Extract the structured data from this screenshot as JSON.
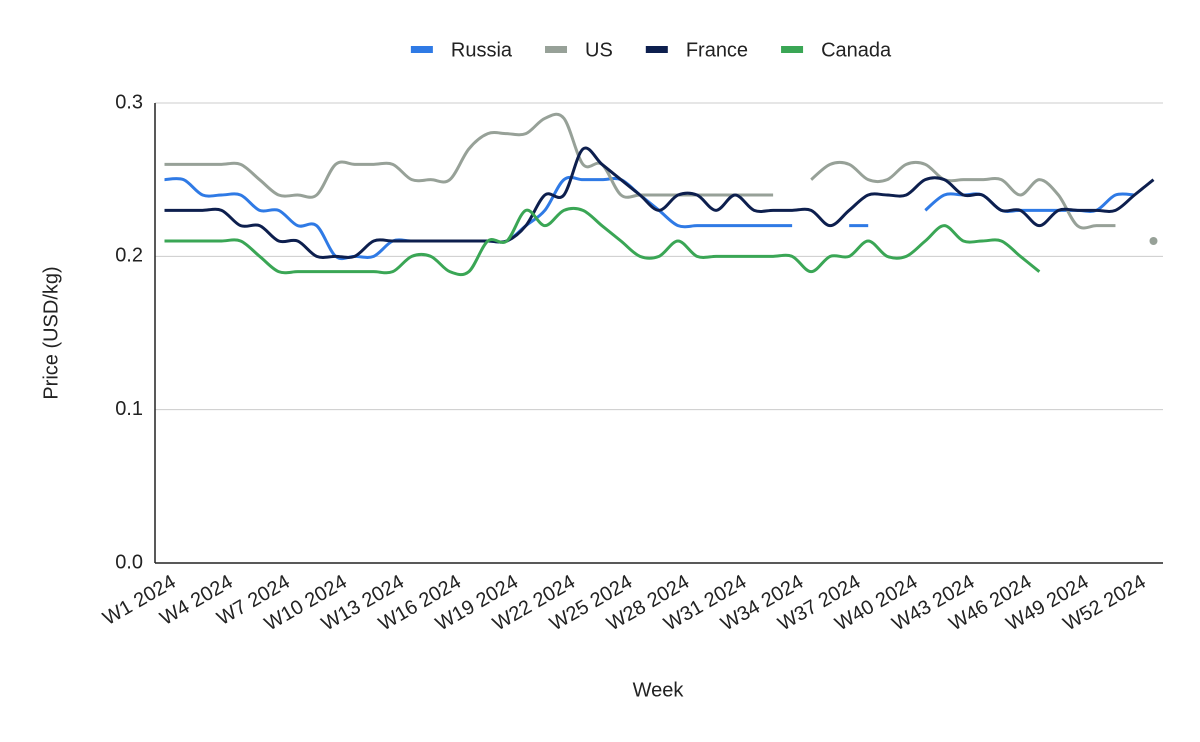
{
  "chart_data": {
    "type": "line",
    "x_label": "Week",
    "y_label": "Price (USD/kg)",
    "categories": [
      "W1 2024",
      null,
      null,
      "W4 2024",
      null,
      null,
      "W7 2024",
      null,
      null,
      "W10 2024",
      null,
      null,
      "W13 2024",
      null,
      null,
      "W16 2024",
      null,
      null,
      "W19 2024",
      null,
      null,
      "W22 2024",
      null,
      null,
      "W25 2024",
      null,
      null,
      "W28 2024",
      null,
      null,
      "W31 2024",
      null,
      null,
      "W34 2024",
      null,
      null,
      "W37 2024",
      null,
      null,
      "W40 2024",
      null,
      null,
      "W43 2024",
      null,
      null,
      "W46 2024",
      null,
      null,
      "W49 2024",
      null,
      null,
      "W52 2024",
      null
    ],
    "ylim": [
      0,
      0.3
    ],
    "yticks": [
      {
        "value": 0,
        "label": "0.0"
      },
      0.1,
      0.2,
      0.3
    ],
    "grid": true,
    "legend": "top",
    "series": [
      {
        "name": "Russia",
        "color": "#2f7ae5",
        "values": [
          0.25,
          0.25,
          0.24,
          0.24,
          0.24,
          0.23,
          0.23,
          0.22,
          0.22,
          0.2,
          0.2,
          0.2,
          0.21,
          0.21,
          0.21,
          0.21,
          0.21,
          0.21,
          0.21,
          0.22,
          0.23,
          0.25,
          0.25,
          0.25,
          0.25,
          0.24,
          0.23,
          0.22,
          0.22,
          0.22,
          0.22,
          0.22,
          0.22,
          0.22,
          null,
          null,
          0.22,
          0.22,
          null,
          null,
          0.23,
          0.24,
          0.24,
          0.24,
          0.23,
          0.23,
          0.23,
          0.23,
          0.23,
          0.23,
          0.24,
          0.24,
          null
        ]
      },
      {
        "name": "US",
        "color": "#97a198",
        "values": [
          0.26,
          0.26,
          0.26,
          0.26,
          0.26,
          0.25,
          0.24,
          0.24,
          0.24,
          0.26,
          0.26,
          0.26,
          0.26,
          0.25,
          0.25,
          0.25,
          0.27,
          0.28,
          0.28,
          0.28,
          0.29,
          0.29,
          0.26,
          0.26,
          0.24,
          0.24,
          0.24,
          0.24,
          0.24,
          0.24,
          0.24,
          0.24,
          0.24,
          null,
          0.25,
          0.26,
          0.26,
          0.25,
          0.25,
          0.26,
          0.26,
          0.25,
          0.25,
          0.25,
          0.25,
          0.24,
          0.25,
          0.24,
          0.22,
          0.22,
          0.22,
          null,
          0.21
        ]
      },
      {
        "name": "France",
        "color": "#0d1f4e",
        "values": [
          0.23,
          0.23,
          0.23,
          0.23,
          0.22,
          0.22,
          0.21,
          0.21,
          0.2,
          0.2,
          0.2,
          0.21,
          0.21,
          0.21,
          0.21,
          0.21,
          0.21,
          0.21,
          0.21,
          0.22,
          0.24,
          0.24,
          0.27,
          0.26,
          0.25,
          0.24,
          0.23,
          0.24,
          0.24,
          0.23,
          0.24,
          0.23,
          0.23,
          0.23,
          0.23,
          0.22,
          0.23,
          0.24,
          0.24,
          0.24,
          0.25,
          0.25,
          0.24,
          0.24,
          0.23,
          0.23,
          0.22,
          0.23,
          0.23,
          0.23,
          0.23,
          0.24,
          0.25
        ]
      },
      {
        "name": "Canada",
        "color": "#3aa655",
        "values": [
          0.21,
          0.21,
          0.21,
          0.21,
          0.21,
          0.2,
          0.19,
          0.19,
          0.19,
          0.19,
          0.19,
          0.19,
          0.19,
          0.2,
          0.2,
          0.19,
          0.19,
          0.21,
          0.21,
          0.23,
          0.22,
          0.23,
          0.23,
          0.22,
          0.21,
          0.2,
          0.2,
          0.21,
          0.2,
          0.2,
          0.2,
          0.2,
          0.2,
          0.2,
          0.19,
          0.2,
          0.2,
          0.21,
          0.2,
          0.2,
          0.21,
          0.22,
          0.21,
          0.21,
          0.21,
          0.2,
          0.19,
          null,
          null,
          null,
          null,
          null,
          null
        ]
      }
    ]
  }
}
